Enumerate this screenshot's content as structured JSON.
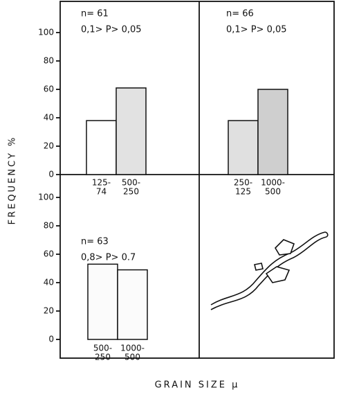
{
  "ylabel": "FREQUENCY %",
  "xlabel": "GRAIN SIZE µ",
  "chart_data": [
    {
      "type": "bar",
      "annotation": [
        "n= 61",
        "0,1> P> 0,05"
      ],
      "categories": [
        [
          "125-",
          "74"
        ],
        [
          "500-",
          "250"
        ]
      ],
      "values": [
        38,
        61
      ],
      "colors": [
        "#ffffff",
        "#e2e2e2"
      ],
      "ylim": [
        0,
        120
      ],
      "yticks": [
        0,
        20,
        40,
        60,
        80,
        100
      ]
    },
    {
      "type": "bar",
      "annotation": [
        "n= 66",
        "0,1> P> 0,05"
      ],
      "categories": [
        [
          "250-",
          "125"
        ],
        [
          "1000-",
          "500"
        ]
      ],
      "values": [
        38,
        60
      ],
      "colors": [
        "#e0e0e0",
        "#cfcfcf"
      ],
      "ylim": [
        0,
        120
      ]
    },
    {
      "type": "bar",
      "annotation": [
        "n= 63",
        "0,8> P> 0.7"
      ],
      "categories": [
        [
          "500-",
          "250"
        ],
        [
          "1000-",
          "500"
        ]
      ],
      "values": [
        53,
        49
      ],
      "colors": [
        "#fbfbfb",
        "#fbfbfb"
      ],
      "ylim": [
        0,
        100
      ],
      "yticks": [
        0,
        20,
        40,
        60,
        80,
        100
      ]
    }
  ]
}
